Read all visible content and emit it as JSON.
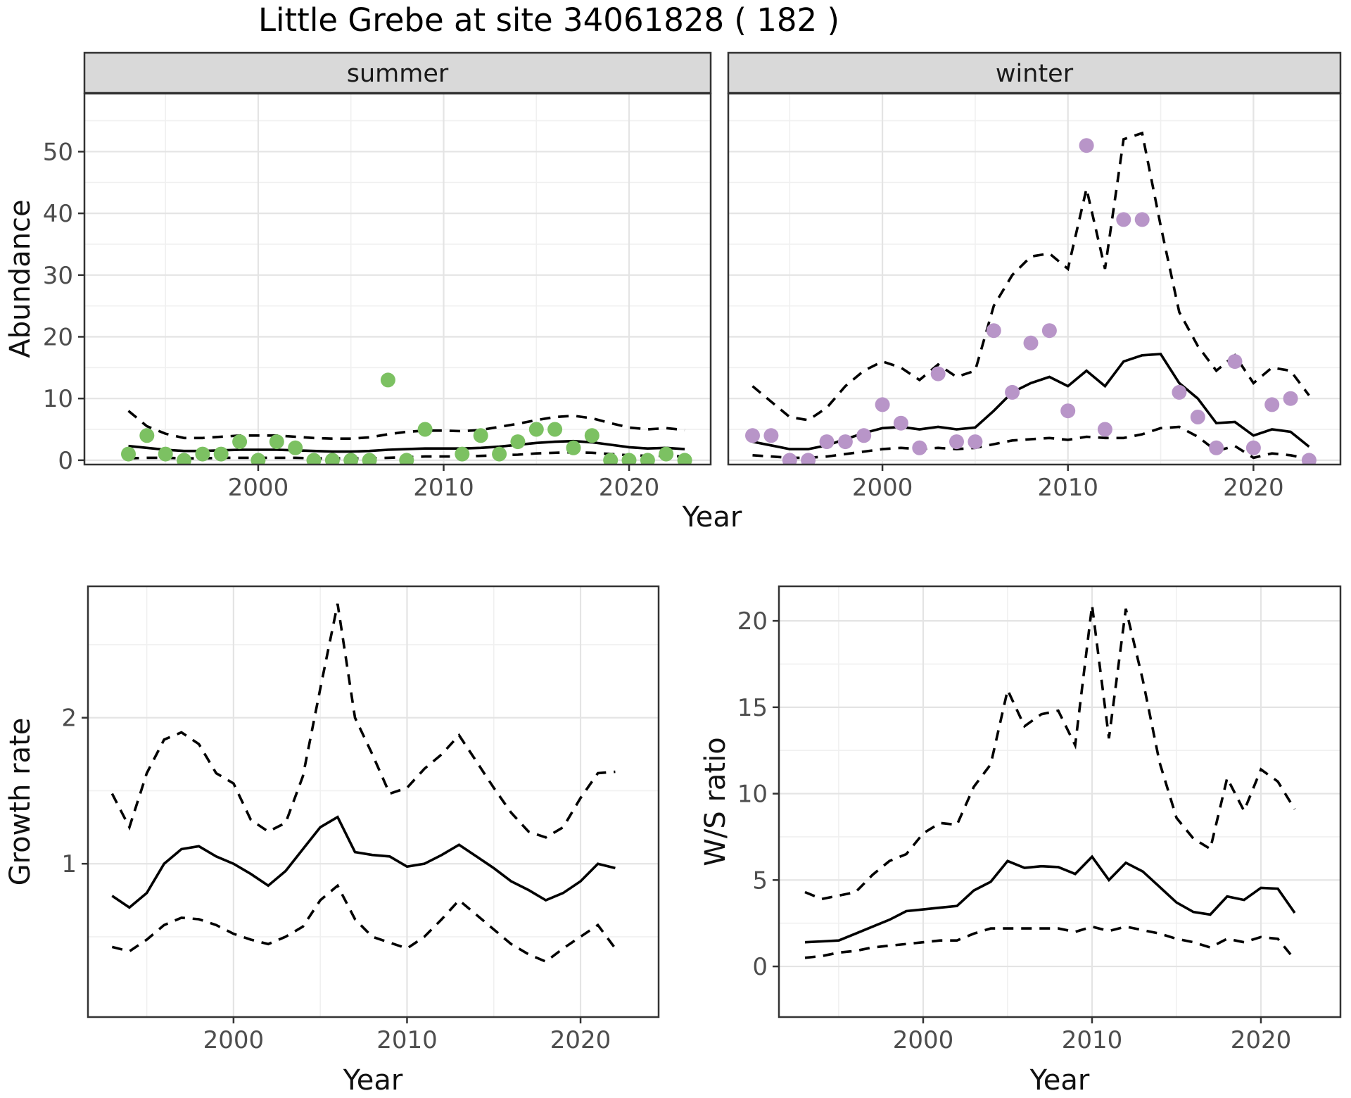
{
  "title": "Little Grebe at site 34061828 ( 182 )",
  "colors": {
    "summer_point": "#7CC162",
    "winter_point": "#B895C8",
    "fit_line": "#000000",
    "ci_line": "#000000",
    "strip_fill": "#D9D9D9",
    "panel_border": "#333333",
    "grid_major": "#E4E4E4",
    "grid_minor": "#F0F0F0",
    "tick_text": "#4D4D4D"
  },
  "chart_data": [
    {
      "id": "abundance-summer",
      "type": "scatter",
      "facet_label": "summer",
      "xlabel": "Year",
      "ylabel": "Abundance",
      "x_range": [
        1990.63,
        2024.4
      ],
      "y_range": [
        -0.7,
        59.4
      ],
      "x_ticks": [
        2000,
        2010,
        2020
      ],
      "x_minor": [
        1995,
        2005,
        2015
      ],
      "y_ticks": [
        0,
        10,
        20,
        30,
        40,
        50
      ],
      "y_minor": [
        5,
        15,
        25,
        35,
        45,
        55
      ],
      "years": [
        1993,
        1994,
        1995,
        1996,
        1997,
        1998,
        1999,
        2000,
        2001,
        2002,
        2003,
        2004,
        2005,
        2006,
        2007,
        2008,
        2009,
        2010,
        2011,
        2012,
        2013,
        2014,
        2015,
        2016,
        2017,
        2018,
        2019,
        2020,
        2021,
        2022,
        2023
      ],
      "points": [
        1,
        4,
        1,
        0,
        1,
        1,
        3,
        0,
        3,
        2,
        0,
        0,
        0,
        0,
        13,
        0,
        5,
        null,
        1,
        4,
        1,
        3,
        5,
        5,
        2,
        4,
        0,
        0,
        0,
        1,
        0
      ],
      "fit": [
        2.3,
        2.0,
        1.7,
        1.5,
        1.5,
        1.6,
        1.7,
        1.7,
        1.7,
        1.6,
        1.5,
        1.4,
        1.4,
        1.5,
        1.7,
        1.8,
        1.9,
        1.9,
        1.9,
        2.0,
        2.2,
        2.5,
        2.8,
        3.0,
        3.1,
        2.9,
        2.5,
        2.1,
        1.9,
        2.0,
        1.8
      ],
      "upper_ci": [
        8.0,
        5.5,
        4.3,
        3.6,
        3.6,
        3.8,
        4.0,
        4.0,
        4.0,
        3.8,
        3.6,
        3.5,
        3.5,
        3.7,
        4.2,
        4.6,
        4.8,
        4.8,
        4.7,
        4.9,
        5.4,
        5.9,
        6.5,
        7.0,
        7.2,
        6.8,
        6.0,
        5.3,
        5.0,
        5.2,
        4.9
      ],
      "lower_ci": [
        0.3,
        0.4,
        0.4,
        0.3,
        0.3,
        0.4,
        0.4,
        0.4,
        0.4,
        0.4,
        0.3,
        0.3,
        0.3,
        0.3,
        0.4,
        0.5,
        0.6,
        0.6,
        0.6,
        0.7,
        0.8,
        0.9,
        1.1,
        1.2,
        1.3,
        1.2,
        1.0,
        0.8,
        0.7,
        0.7,
        0.6
      ],
      "point_color": "#7CC162"
    },
    {
      "id": "abundance-winter",
      "type": "scatter",
      "facet_label": "winter",
      "xlabel": "Year",
      "ylabel": "Abundance",
      "x_range": [
        1991.69,
        2024.69
      ],
      "y_range": [
        -0.7,
        59.4
      ],
      "x_ticks": [
        2000,
        2010,
        2020
      ],
      "x_minor": [
        1995,
        2005,
        2015
      ],
      "y_ticks": [
        0,
        10,
        20,
        30,
        40,
        50
      ],
      "y_minor": [
        5,
        15,
        25,
        35,
        45,
        55
      ],
      "years": [
        1993,
        1994,
        1995,
        1996,
        1997,
        1998,
        1999,
        2000,
        2001,
        2002,
        2003,
        2004,
        2005,
        2006,
        2007,
        2008,
        2009,
        2010,
        2011,
        2012,
        2013,
        2014,
        2015,
        2016,
        2017,
        2018,
        2019,
        2020,
        2021,
        2022,
        2023
      ],
      "points": [
        4,
        4,
        0,
        0,
        3,
        3,
        4,
        9,
        6,
        2,
        14,
        3,
        3,
        21,
        11,
        19,
        21,
        8,
        51,
        5,
        39,
        39,
        null,
        11,
        7,
        2,
        16,
        2,
        9,
        10,
        0
      ],
      "fit": [
        3.0,
        2.4,
        1.8,
        1.8,
        2.4,
        3.4,
        4.4,
        5.2,
        5.4,
        5.0,
        5.4,
        5.0,
        5.3,
        8.0,
        11.0,
        12.5,
        13.5,
        12.0,
        14.5,
        12.0,
        16.0,
        17.0,
        17.2,
        12.5,
        10.0,
        6.0,
        6.2,
        4.0,
        5.0,
        4.6,
        2.2
      ],
      "upper_ci": [
        12,
        9.5,
        7.0,
        6.5,
        8.5,
        12,
        14.5,
        16,
        15,
        13,
        15.5,
        13.5,
        14.5,
        25,
        30,
        33,
        33.5,
        31,
        44,
        31,
        52,
        53,
        38,
        24,
        18.5,
        14.5,
        17,
        12.5,
        15,
        14.5,
        10.5
      ],
      "lower_ci": [
        0.8,
        0.6,
        0.4,
        0.4,
        0.6,
        1.0,
        1.4,
        1.8,
        2.0,
        1.8,
        2.0,
        1.8,
        2.0,
        2.6,
        3.2,
        3.4,
        3.6,
        3.3,
        3.8,
        3.6,
        3.6,
        4.2,
        5.2,
        5.4,
        3.8,
        1.5,
        2.3,
        0.4,
        1.1,
        0.8,
        0.2
      ],
      "point_color": "#B895C8"
    },
    {
      "id": "growth-rate",
      "type": "line",
      "facet_label": "",
      "xlabel": "Year",
      "ylabel": "Growth rate",
      "x_range": [
        1991.61,
        2024.5
      ],
      "y_range": [
        -0.05,
        2.9
      ],
      "x_ticks": [
        2000,
        2010,
        2020
      ],
      "x_minor": [
        1995,
        2005,
        2015
      ],
      "y_ticks": [
        1,
        2
      ],
      "y_minor": [
        0.5,
        1.5,
        2.5
      ],
      "years": [
        1993,
        1994,
        1995,
        1996,
        1997,
        1998,
        1999,
        2000,
        2001,
        2002,
        2003,
        2004,
        2005,
        2006,
        2007,
        2008,
        2009,
        2010,
        2011,
        2012,
        2013,
        2014,
        2015,
        2016,
        2017,
        2018,
        2019,
        2020,
        2021,
        2022
      ],
      "points": [],
      "fit": [
        0.78,
        0.7,
        0.8,
        1.0,
        1.1,
        1.12,
        1.05,
        1.0,
        0.93,
        0.85,
        0.95,
        1.1,
        1.25,
        1.32,
        1.08,
        1.06,
        1.05,
        0.98,
        1.0,
        1.06,
        1.13,
        1.05,
        0.97,
        0.88,
        0.82,
        0.75,
        0.8,
        0.88,
        1.0,
        0.97
      ],
      "upper_ci": [
        1.48,
        1.25,
        1.62,
        1.85,
        1.9,
        1.82,
        1.62,
        1.55,
        1.3,
        1.22,
        1.28,
        1.6,
        2.2,
        2.78,
        2.0,
        1.75,
        1.48,
        1.52,
        1.65,
        1.75,
        1.88,
        1.7,
        1.52,
        1.35,
        1.22,
        1.18,
        1.25,
        1.45,
        1.62,
        1.63
      ],
      "lower_ci": [
        0.43,
        0.4,
        0.48,
        0.58,
        0.63,
        0.62,
        0.58,
        0.52,
        0.48,
        0.45,
        0.5,
        0.57,
        0.75,
        0.85,
        0.62,
        0.5,
        0.46,
        0.42,
        0.5,
        0.62,
        0.75,
        0.65,
        0.55,
        0.45,
        0.38,
        0.33,
        0.42,
        0.5,
        0.58,
        0.42
      ],
      "point_color": "#000000"
    },
    {
      "id": "ws-ratio",
      "type": "line",
      "facet_label": "",
      "xlabel": "Year",
      "ylabel": "W/S ratio",
      "x_range": [
        1991.46,
        2024.71
      ],
      "y_range": [
        -2.93,
        22.0
      ],
      "x_ticks": [
        2000,
        2010,
        2020
      ],
      "x_minor": [
        1995,
        2005,
        2015
      ],
      "y_ticks": [
        0,
        5,
        10,
        15,
        20
      ],
      "y_minor": [
        2.5,
        7.5,
        12.5,
        17.5
      ],
      "years": [
        1993,
        1994,
        1995,
        1996,
        1997,
        1998,
        1999,
        2000,
        2001,
        2002,
        2003,
        2004,
        2005,
        2006,
        2007,
        2008,
        2009,
        2010,
        2011,
        2012,
        2013,
        2014,
        2015,
        2016,
        2017,
        2018,
        2019,
        2020,
        2021,
        2022
      ],
      "points": [],
      "fit": [
        1.4,
        1.45,
        1.5,
        1.9,
        2.3,
        2.7,
        3.2,
        3.3,
        3.4,
        3.5,
        4.4,
        4.9,
        6.1,
        5.7,
        5.8,
        5.75,
        5.35,
        6.35,
        5.0,
        6.0,
        5.5,
        4.6,
        3.7,
        3.15,
        3.0,
        4.05,
        3.85,
        4.55,
        4.5,
        3.1
      ],
      "upper_ci": [
        4.3,
        3.9,
        4.1,
        4.3,
        5.3,
        6.1,
        6.5,
        7.7,
        8.3,
        8.2,
        10.4,
        11.7,
        16.0,
        13.9,
        14.6,
        14.8,
        12.8,
        20.9,
        13.2,
        20.7,
        16.6,
        11.8,
        8.6,
        7.4,
        6.8,
        10.9,
        9.0,
        11.4,
        10.7,
        9.1
      ],
      "lower_ci": [
        0.5,
        0.6,
        0.8,
        0.9,
        1.1,
        1.2,
        1.3,
        1.4,
        1.5,
        1.5,
        1.9,
        2.2,
        2.2,
        2.2,
        2.2,
        2.2,
        2.0,
        2.3,
        2.05,
        2.3,
        2.1,
        1.9,
        1.6,
        1.4,
        1.1,
        1.6,
        1.4,
        1.7,
        1.6,
        0.4
      ],
      "point_color": "#000000"
    }
  ]
}
